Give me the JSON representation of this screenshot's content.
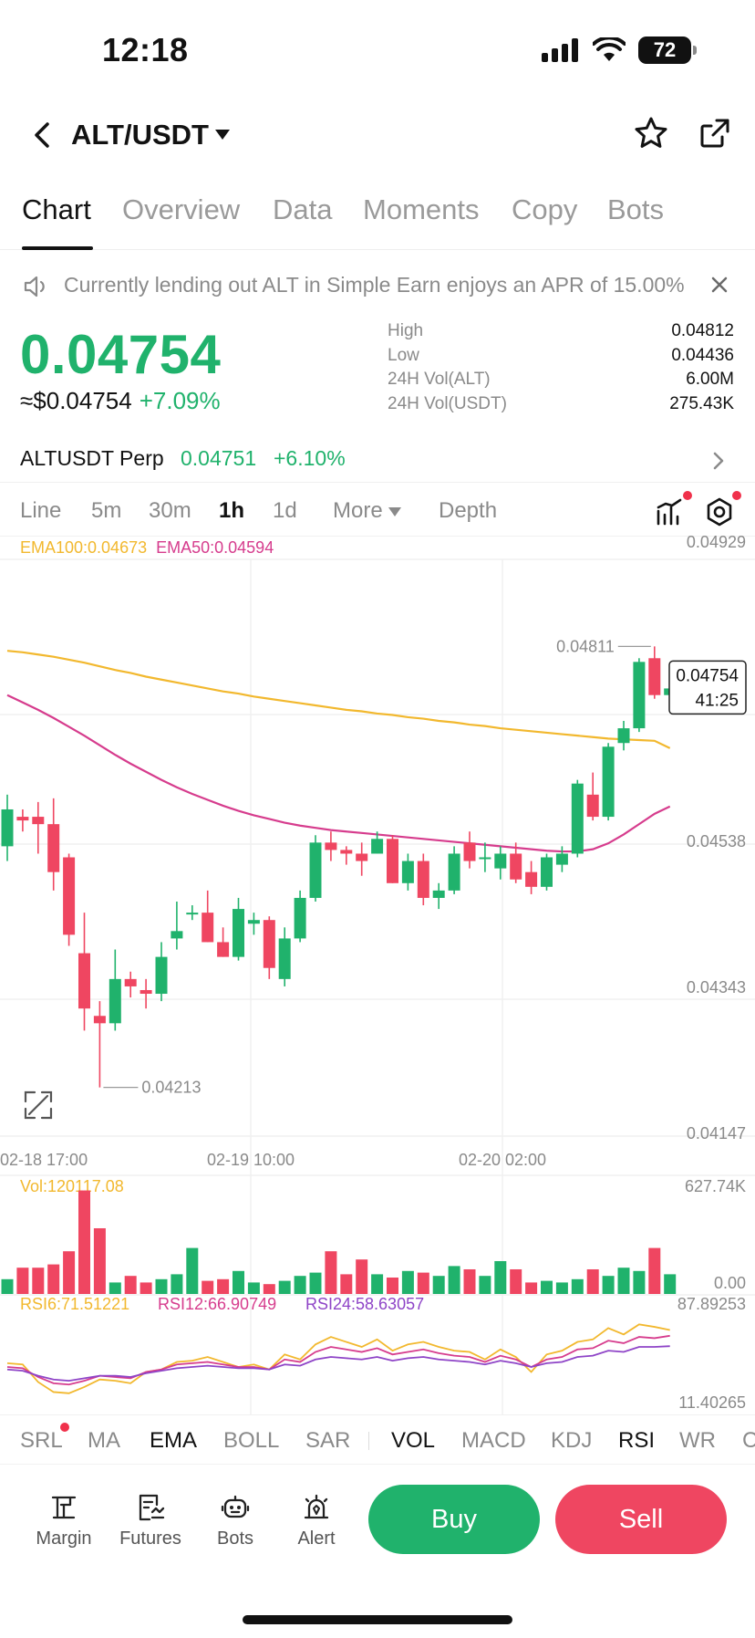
{
  "status_bar": {
    "time": "12:18",
    "battery": "72"
  },
  "header": {
    "pair": "ALT/USDT"
  },
  "tabs": [
    {
      "label": "Chart",
      "active": true
    },
    {
      "label": "Overview"
    },
    {
      "label": "Data"
    },
    {
      "label": "Moments"
    },
    {
      "label": "Copy"
    },
    {
      "label": "Bots"
    }
  ],
  "notice": {
    "text": "Currently lending out ALT in Simple Earn enjoys an APR of 15.00%"
  },
  "price": {
    "last": "0.04754",
    "fiat": "≈$0.04754",
    "change": "+7.09%",
    "stats": [
      {
        "label": "High",
        "value": "0.04812"
      },
      {
        "label": "Low",
        "value": "0.04436"
      },
      {
        "label": "24H Vol(ALT)",
        "value": "6.00M"
      },
      {
        "label": "24H Vol(USDT)",
        "value": "275.43K"
      }
    ]
  },
  "perp": {
    "name": "ALTUSDT Perp",
    "price": "0.04751",
    "change": "+6.10%"
  },
  "intervals": [
    {
      "label": "Line"
    },
    {
      "label": "5m"
    },
    {
      "label": "30m"
    },
    {
      "label": "1h",
      "active": true
    },
    {
      "label": "1d"
    },
    {
      "label": "More"
    },
    {
      "label": "Depth"
    }
  ],
  "ema_legend": {
    "ema100": "EMA100:0.04673",
    "ema50": "EMA50:0.04594"
  },
  "colors": {
    "up": "#20b26c",
    "down": "#ef4661",
    "ema100": "#f2b82e",
    "ema50": "#d63c8d",
    "rsi6": "#f2b82e",
    "rsi12": "#d63c8d",
    "rsi24": "#8e44c7"
  },
  "chart_data": {
    "type": "candlestick",
    "y_axis_ticks": [
      "0.04929",
      "0.04538",
      "0.04343",
      "0.04147"
    ],
    "ylim": [
      0.04147,
      0.04929
    ],
    "x_tick_labels": [
      "02-18 17:00",
      "02-19 10:00",
      "02-20 02:00"
    ],
    "high_annotation": "0.04811",
    "low_annotation": "0.04213",
    "current_price_label": "0.04754",
    "countdown": "41:25",
    "candles": [
      {
        "o": 0.0454,
        "h": 0.0461,
        "l": 0.0452,
        "c": 0.0459
      },
      {
        "o": 0.0458,
        "h": 0.0459,
        "l": 0.0456,
        "c": 0.04575
      },
      {
        "o": 0.0458,
        "h": 0.046,
        "l": 0.0453,
        "c": 0.0457
      },
      {
        "o": 0.0457,
        "h": 0.04605,
        "l": 0.0448,
        "c": 0.04505
      },
      {
        "o": 0.04525,
        "h": 0.0453,
        "l": 0.04405,
        "c": 0.0442
      },
      {
        "o": 0.04395,
        "h": 0.0445,
        "l": 0.0429,
        "c": 0.0432
      },
      {
        "o": 0.0431,
        "h": 0.0433,
        "l": 0.04213,
        "c": 0.043
      },
      {
        "o": 0.043,
        "h": 0.044,
        "l": 0.0429,
        "c": 0.0436
      },
      {
        "o": 0.0436,
        "h": 0.0437,
        "l": 0.04335,
        "c": 0.0435
      },
      {
        "o": 0.04345,
        "h": 0.0436,
        "l": 0.0432,
        "c": 0.0434
      },
      {
        "o": 0.0434,
        "h": 0.0441,
        "l": 0.0433,
        "c": 0.0439
      },
      {
        "o": 0.04415,
        "h": 0.04465,
        "l": 0.044,
        "c": 0.04425
      },
      {
        "o": 0.0445,
        "h": 0.0446,
        "l": 0.0444,
        "c": 0.0445
      },
      {
        "o": 0.0445,
        "h": 0.0448,
        "l": 0.0441,
        "c": 0.0441
      },
      {
        "o": 0.0441,
        "h": 0.0443,
        "l": 0.0439,
        "c": 0.0439
      },
      {
        "o": 0.0439,
        "h": 0.0447,
        "l": 0.04385,
        "c": 0.04455
      },
      {
        "o": 0.04435,
        "h": 0.0445,
        "l": 0.0442,
        "c": 0.0444
      },
      {
        "o": 0.0444,
        "h": 0.04445,
        "l": 0.0436,
        "c": 0.04375
      },
      {
        "o": 0.0436,
        "h": 0.0443,
        "l": 0.0435,
        "c": 0.04415
      },
      {
        "o": 0.04415,
        "h": 0.0448,
        "l": 0.0441,
        "c": 0.0447
      },
      {
        "o": 0.0447,
        "h": 0.04555,
        "l": 0.04465,
        "c": 0.04545
      },
      {
        "o": 0.04545,
        "h": 0.0456,
        "l": 0.0452,
        "c": 0.04535
      },
      {
        "o": 0.04535,
        "h": 0.0454,
        "l": 0.04515,
        "c": 0.0453
      },
      {
        "o": 0.0453,
        "h": 0.04545,
        "l": 0.045,
        "c": 0.0452
      },
      {
        "o": 0.0453,
        "h": 0.0456,
        "l": 0.0453,
        "c": 0.0455
      },
      {
        "o": 0.0455,
        "h": 0.04555,
        "l": 0.0449,
        "c": 0.0449
      },
      {
        "o": 0.0449,
        "h": 0.0453,
        "l": 0.0448,
        "c": 0.0452
      },
      {
        "o": 0.0452,
        "h": 0.0453,
        "l": 0.0446,
        "c": 0.0447
      },
      {
        "o": 0.0447,
        "h": 0.0449,
        "l": 0.04455,
        "c": 0.0448
      },
      {
        "o": 0.0448,
        "h": 0.0454,
        "l": 0.04475,
        "c": 0.0453
      },
      {
        "o": 0.04545,
        "h": 0.0456,
        "l": 0.0451,
        "c": 0.0452
      },
      {
        "o": 0.04525,
        "h": 0.04545,
        "l": 0.04505,
        "c": 0.04525
      },
      {
        "o": 0.0451,
        "h": 0.0454,
        "l": 0.04495,
        "c": 0.0453
      },
      {
        "o": 0.0453,
        "h": 0.04545,
        "l": 0.0449,
        "c": 0.04495
      },
      {
        "o": 0.04505,
        "h": 0.0452,
        "l": 0.04475,
        "c": 0.04485
      },
      {
        "o": 0.04485,
        "h": 0.0453,
        "l": 0.0448,
        "c": 0.04525
      },
      {
        "o": 0.04515,
        "h": 0.0454,
        "l": 0.04505,
        "c": 0.0453
      },
      {
        "o": 0.0453,
        "h": 0.0463,
        "l": 0.04525,
        "c": 0.04625
      },
      {
        "o": 0.0461,
        "h": 0.0464,
        "l": 0.04575,
        "c": 0.0458
      },
      {
        "o": 0.0458,
        "h": 0.0468,
        "l": 0.04575,
        "c": 0.04675
      },
      {
        "o": 0.0468,
        "h": 0.0471,
        "l": 0.0467,
        "c": 0.047
      },
      {
        "o": 0.047,
        "h": 0.04795,
        "l": 0.04695,
        "c": 0.0479
      },
      {
        "o": 0.04795,
        "h": 0.04811,
        "l": 0.0474,
        "c": 0.04745
      },
      {
        "o": 0.04745,
        "h": 0.04765,
        "l": 0.04735,
        "c": 0.04754
      }
    ],
    "ema100": [
      0.04805,
      0.04803,
      0.048,
      0.04797,
      0.04793,
      0.04789,
      0.04784,
      0.04779,
      0.04775,
      0.0477,
      0.04766,
      0.04762,
      0.04758,
      0.04754,
      0.0475,
      0.04747,
      0.04743,
      0.0474,
      0.04737,
      0.04734,
      0.04731,
      0.04728,
      0.04725,
      0.04723,
      0.0472,
      0.04718,
      0.04715,
      0.04713,
      0.0471,
      0.04708,
      0.04705,
      0.04703,
      0.047,
      0.04698,
      0.04696,
      0.04694,
      0.04692,
      0.0469,
      0.04688,
      0.04686,
      0.04685,
      0.04684,
      0.04683,
      0.04673
    ],
    "ema50": [
      0.04745,
      0.04735,
      0.04725,
      0.04714,
      0.04702,
      0.0469,
      0.04677,
      0.04664,
      0.04652,
      0.04641,
      0.0463,
      0.0462,
      0.04611,
      0.04603,
      0.04595,
      0.04588,
      0.04582,
      0.04577,
      0.04572,
      0.04568,
      0.04565,
      0.04562,
      0.0456,
      0.04558,
      0.04556,
      0.04554,
      0.04552,
      0.0455,
      0.04548,
      0.04546,
      0.04544,
      0.04542,
      0.0454,
      0.04538,
      0.04536,
      0.04534,
      0.04533,
      0.04533,
      0.04536,
      0.04544,
      0.04556,
      0.0457,
      0.04584,
      0.04594
    ],
    "volume": {
      "label": "Vol:120117.08",
      "max_label": "627.74K",
      "min_label": "0.00",
      "ylim": [
        0,
        627740
      ],
      "values": [
        90000,
        160000,
        160000,
        180000,
        260000,
        630000,
        400000,
        70000,
        110000,
        70000,
        90000,
        120000,
        280000,
        80000,
        90000,
        140000,
        70000,
        60000,
        80000,
        110000,
        130000,
        260000,
        120000,
        210000,
        120000,
        100000,
        140000,
        130000,
        110000,
        170000,
        150000,
        110000,
        200000,
        150000,
        70000,
        80000,
        70000,
        90000,
        150000,
        110000,
        160000,
        140000,
        280000,
        120000
      ]
    },
    "rsi": {
      "labels": [
        "RSI6:71.51221",
        "RSI12:66.90749",
        "RSI24:58.63057"
      ],
      "max_label": "87.89253",
      "min_label": "11.40265",
      "ylim": [
        11.40265,
        87.89253
      ],
      "rsi6": [
        45,
        44,
        30,
        22,
        21,
        26,
        32,
        31,
        29,
        38,
        40,
        46,
        47,
        50,
        46,
        42,
        44,
        40,
        52,
        48,
        60,
        66,
        62,
        58,
        64,
        55,
        60,
        62,
        58,
        55,
        54,
        48,
        56,
        50,
        38,
        52,
        55,
        62,
        64,
        73,
        68,
        76,
        74,
        71.5
      ],
      "rsi12": [
        42,
        41,
        34,
        29,
        28,
        31,
        35,
        34,
        33,
        38,
        40,
        44,
        45,
        46,
        44,
        42,
        42,
        40,
        48,
        46,
        54,
        58,
        56,
        54,
        57,
        52,
        54,
        56,
        53,
        51,
        50,
        46,
        51,
        48,
        42,
        48,
        50,
        56,
        57,
        63,
        61,
        66,
        65,
        66.9
      ],
      "rsi24": [
        40,
        39,
        35,
        32,
        31,
        33,
        35,
        35,
        34,
        37,
        39,
        41,
        42,
        43,
        42,
        41,
        41,
        40,
        44,
        43,
        48,
        50,
        49,
        48,
        50,
        47,
        49,
        50,
        48,
        47,
        46,
        44,
        47,
        45,
        42,
        45,
        46,
        50,
        51,
        55,
        54,
        58,
        58,
        58.6
      ]
    }
  },
  "indicators": [
    {
      "label": "SRL"
    },
    {
      "label": "MA"
    },
    {
      "label": "EMA",
      "active": true
    },
    {
      "label": "BOLL"
    },
    {
      "label": "SAR"
    },
    {
      "label": "VOL",
      "active": true
    },
    {
      "label": "MACD"
    },
    {
      "label": "KDJ"
    },
    {
      "label": "RSI",
      "active": true
    },
    {
      "label": "WR"
    },
    {
      "label": "C"
    }
  ],
  "bottom_nav": [
    {
      "label": "Margin",
      "icon": "margin-icon"
    },
    {
      "label": "Futures",
      "icon": "futures-icon"
    },
    {
      "label": "Bots",
      "icon": "bots-icon"
    },
    {
      "label": "Alert",
      "icon": "alert-icon"
    }
  ],
  "actions": {
    "buy": "Buy",
    "sell": "Sell"
  }
}
